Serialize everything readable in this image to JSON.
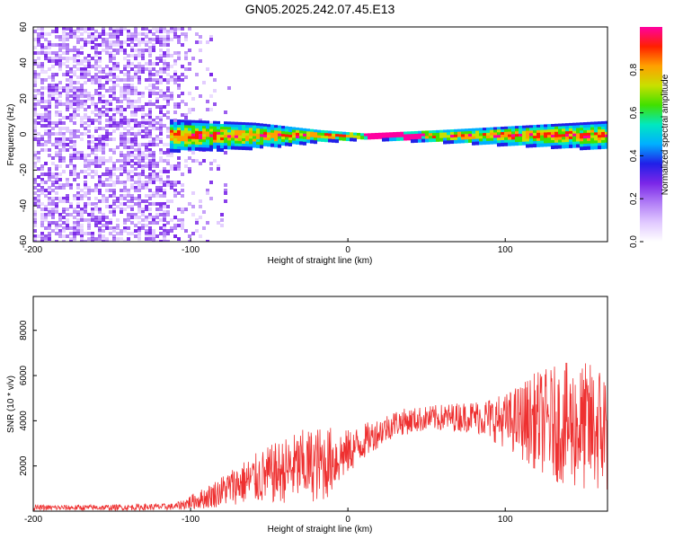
{
  "title": "GN05.2025.242.07.45.E13",
  "chart_data": [
    {
      "type": "heatmap",
      "xlabel": "Height of straight line (km)",
      "ylabel": "Frequency (Hz)",
      "xlim": [
        -200,
        165
      ],
      "ylim": [
        -60,
        60
      ],
      "xticks": [
        -200,
        -100,
        0,
        100
      ],
      "yticks": [
        -60,
        -40,
        -20,
        0,
        20,
        40,
        60
      ],
      "colorbar": {
        "label": "Normalized spectral amplitude",
        "range": [
          0,
          1
        ],
        "ticks": [
          0.0,
          0.2,
          0.4,
          0.6,
          0.8
        ],
        "colors": [
          "#ffffff",
          "#e0c8ff",
          "#b07cf6",
          "#7a26e8",
          "#2020e8",
          "#00b0ff",
          "#00e8c0",
          "#40e000",
          "#c8e000",
          "#ffa000",
          "#ff2000",
          "#ff00a0"
        ]
      },
      "noise_region_x": [
        -200,
        -115
      ],
      "signal_band": {
        "center_hz": 0,
        "halfwidth_hz": [
          10,
          8,
          4,
          2,
          4,
          9
        ],
        "x": [
          -115,
          -60,
          -20,
          10,
          60,
          165
        ]
      },
      "peak_x": [
        10,
        45
      ]
    },
    {
      "type": "line",
      "xlabel": "Height of straight line (km)",
      "ylabel": "SNR (10 * v/v)",
      "xlim": [
        -200,
        165
      ],
      "ylim": [
        0,
        9500
      ],
      "xticks": [
        -200,
        -100,
        0,
        100
      ],
      "yticks": [
        2000,
        4000,
        6000,
        8000
      ],
      "color": "#ee3030",
      "envelope": {
        "x": [
          -200,
          -150,
          -110,
          -90,
          -70,
          -50,
          -30,
          -15,
          0,
          15,
          30,
          50,
          80,
          100,
          120,
          140,
          165
        ],
        "mean": [
          150,
          160,
          200,
          600,
          1200,
          1600,
          2000,
          2100,
          2600,
          3300,
          3900,
          4100,
          4200,
          4000,
          4000,
          3800,
          3600
        ],
        "amplitude": [
          120,
          130,
          150,
          500,
          900,
          1300,
          1600,
          1700,
          1000,
          700,
          600,
          550,
          700,
          1200,
          2200,
          2800,
          3000
        ]
      }
    }
  ]
}
